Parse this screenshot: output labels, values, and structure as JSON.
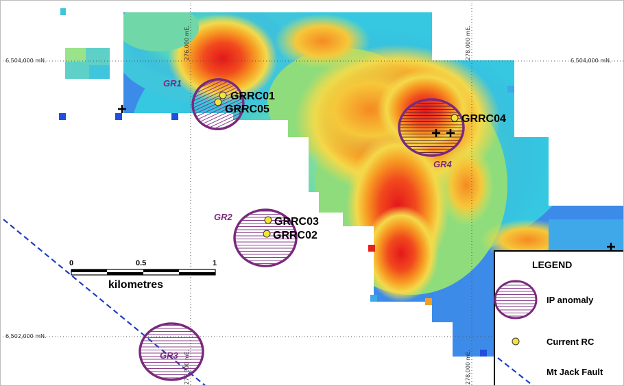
{
  "grid": {
    "northings": [
      {
        "label_left": "6,504,000 mN.",
        "label_right": "6,504,000 mN."
      },
      {
        "label_left": "6,502,000 mN.",
        "label_right": ""
      }
    ],
    "eastings": [
      {
        "label_top": "276,000 mE.",
        "label_bottom": "276,000 mE."
      },
      {
        "label_top": "278,000 mE.",
        "label_bottom": "278,000 mE."
      }
    ]
  },
  "anomalies": [
    {
      "label": "GR1"
    },
    {
      "label": "GR2"
    },
    {
      "label": "GR3"
    },
    {
      "label": "GR4"
    }
  ],
  "drillholes": [
    {
      "label": "GRRC01"
    },
    {
      "label": "GRRC05"
    },
    {
      "label": "GRRC04"
    },
    {
      "label": "GRRC03"
    },
    {
      "label": "GRRC02"
    }
  ],
  "scale_bar": {
    "ticks": [
      "0",
      "0.5",
      "1"
    ],
    "unit": "kilometres"
  },
  "legend": {
    "title": "LEGEND",
    "items": [
      {
        "label": "IP anomaly"
      },
      {
        "label": "Current RC"
      },
      {
        "label": "Mt Jack Fault"
      }
    ]
  },
  "colors": {
    "anomaly_outline": "#7a2a7e",
    "drillhole_fill": "#f4e43a",
    "fault_line": "#1f3fbf",
    "ip_high": "#e8201a",
    "ip_low": "#1f5fe0"
  }
}
